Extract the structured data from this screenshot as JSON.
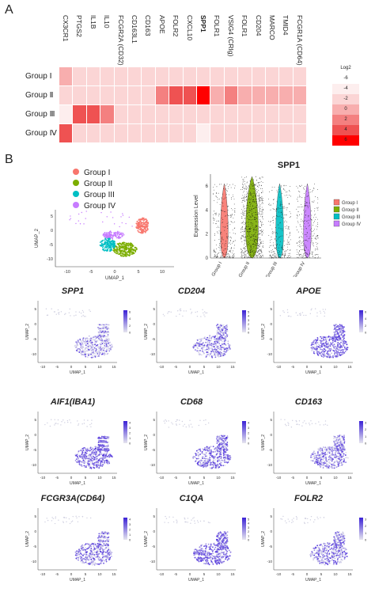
{
  "panel_labels": {
    "a": "A",
    "b": "B"
  },
  "heatmap": {
    "genes": [
      "CX3CR1",
      "PTGS2",
      "IL1B",
      "IL10",
      "FCGR2A (CD32)",
      "CD163L1",
      "CD163",
      "APOE",
      "FOLR2",
      "CXCL10",
      "SPP1",
      "FOLR1",
      "VSIG4 (CRIg)",
      "FOLR1",
      "CD204",
      "MARCO",
      "TMID4",
      "FCGR1A (CD64)"
    ],
    "bold_gene_index": 10,
    "groups": [
      "Group Ⅰ",
      "Group Ⅱ",
      "Group Ⅲ",
      "Group Ⅳ"
    ],
    "values": [
      [
        -1,
        -2,
        -2,
        -2,
        -2,
        -2,
        -2,
        -2,
        -2,
        -2,
        -3,
        -2,
        -2,
        -2,
        -2,
        -2,
        -2,
        -2
      ],
      [
        -3,
        -3,
        -3,
        -3,
        -2,
        -2,
        -2,
        2,
        3,
        3,
        6,
        0,
        1,
        0,
        0,
        0,
        0,
        0
      ],
      [
        -4,
        3,
        3,
        2,
        -2,
        -3,
        -3,
        -2,
        -3,
        -3,
        -3,
        -3,
        -3,
        -3,
        -3,
        -3,
        -3,
        -3
      ],
      [
        3,
        -3,
        -3,
        -3,
        -3,
        -3,
        -3,
        -3,
        -3,
        -3,
        -4,
        -3,
        -3,
        -3,
        -3,
        -3,
        -3,
        -3
      ]
    ],
    "legend": {
      "title": "Log2",
      "levels": [
        "-6",
        "-4",
        "-2",
        "0",
        "2",
        "4",
        "6"
      ],
      "colors": [
        "#ffffff",
        "#fdeeee",
        "#fbd5d5",
        "#f8aeae",
        "#f48080",
        "#ef5252",
        "#ff0000"
      ]
    }
  },
  "umap": {
    "legend": [
      "Group I",
      "Group II",
      "Group III",
      "Group IV"
    ],
    "colors": [
      "#f8766d",
      "#7cae00",
      "#00bfc4",
      "#c77cff"
    ],
    "xlabel": "UMAP_1",
    "ylabel": "UMAP_2",
    "xticks": [
      "-10",
      "-5",
      "0",
      "5",
      "10"
    ],
    "yticks": [
      "5",
      "0",
      "-5",
      "-10"
    ]
  },
  "chart_data": {
    "type": "violin",
    "title": "SPP1",
    "ylabel": "Expression Level",
    "categories": [
      "Group I",
      "Group II",
      "Group III",
      "Group IV"
    ],
    "ylim": [
      0,
      7
    ],
    "yticks": [
      "0",
      "2",
      "4",
      "6"
    ],
    "legend": [
      "Group I",
      "Group II",
      "Group III",
      "Group IV"
    ],
    "colors": [
      "#f8766d",
      "#7cae00",
      "#00bfc4",
      "#c77cff"
    ]
  },
  "feature_plots": [
    {
      "title": "SPP1",
      "scale": [
        "6",
        "4",
        "2",
        "0"
      ]
    },
    {
      "title": "CD204",
      "scale": [
        "5",
        "4",
        "3",
        "2",
        "1",
        "0"
      ]
    },
    {
      "title": "APOE",
      "scale": [
        "6",
        "4",
        "2",
        "0"
      ]
    },
    {
      "title": "AIF1(IBA1)",
      "scale": [
        "4",
        "3",
        "2",
        "1",
        "0"
      ]
    },
    {
      "title": "CD68",
      "scale": [
        "4",
        "3",
        "2",
        "1",
        "0"
      ]
    },
    {
      "title": "CD163",
      "scale": [
        "3",
        "2",
        "1",
        "0"
      ]
    },
    {
      "title": "FCGR3A(CD64)",
      "scale": [
        "4",
        "3",
        "2",
        "1",
        "0"
      ]
    },
    {
      "title": "C1QA",
      "scale": [
        "5",
        "4",
        "3",
        "2",
        "1",
        "0"
      ]
    },
    {
      "title": "FOLR2",
      "scale": [
        "3",
        "2",
        "1",
        "0"
      ]
    }
  ],
  "feature_axes": {
    "xlabel": "UMAP_1",
    "ylabel": "UMAP_2",
    "xticks": [
      "-10",
      "-5",
      "0",
      "5",
      "10",
      "15"
    ],
    "yticks": [
      "5",
      "0",
      "-5",
      "-10"
    ]
  }
}
